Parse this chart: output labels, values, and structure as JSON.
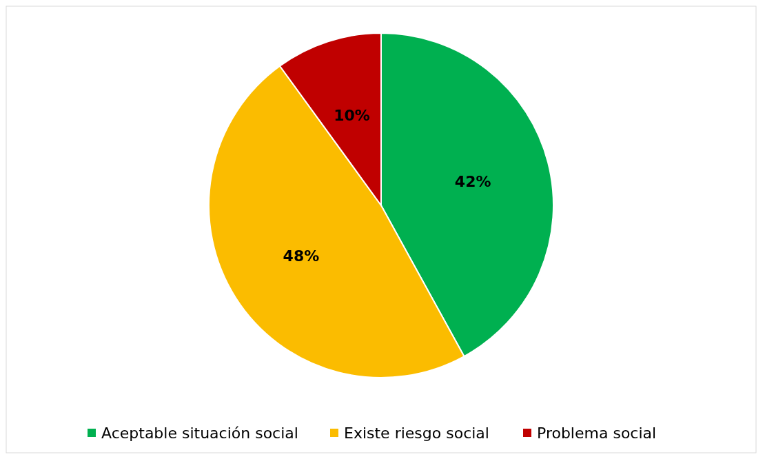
{
  "chart_data": {
    "type": "pie",
    "categories": [
      "Aceptable situación social",
      "Existe riesgo social",
      "Problema social"
    ],
    "values": [
      42,
      48,
      10
    ],
    "colors": [
      "#00b050",
      "#fbbc00",
      "#c00000"
    ],
    "value_labels": [
      "42%",
      "48%",
      "10%"
    ],
    "legend": "bottom"
  }
}
